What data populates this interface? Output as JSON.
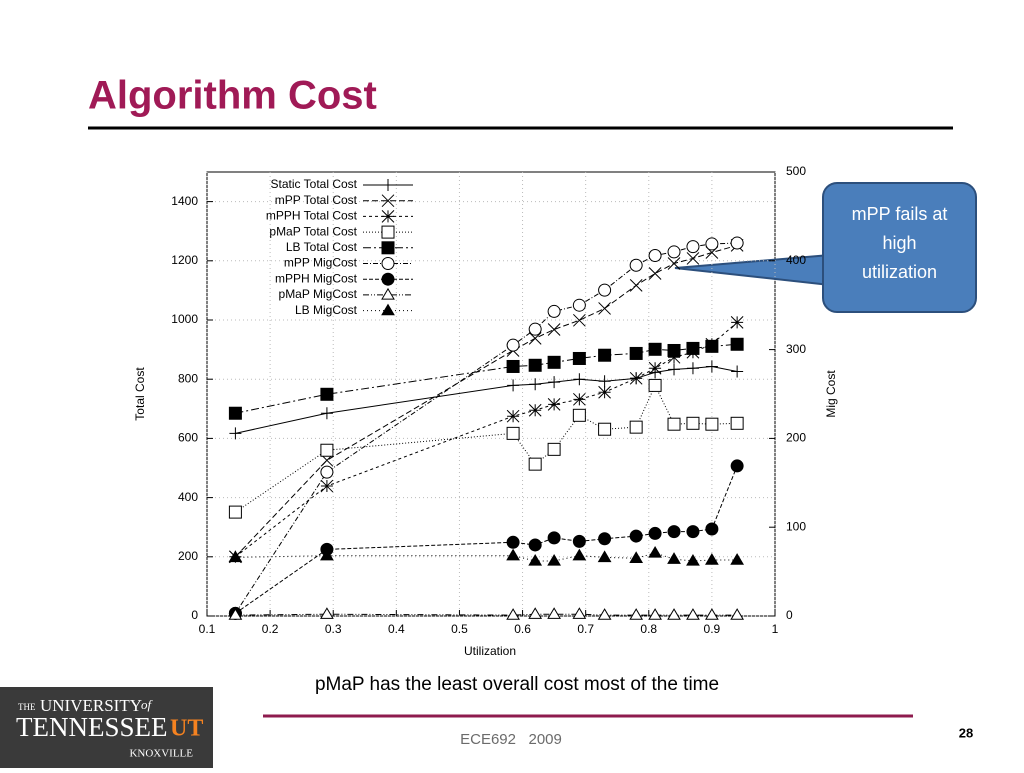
{
  "slide": {
    "title": "Algorithm Cost",
    "callout": "mPP fails at high utilization",
    "caption": "pMaP has the least overall cost most of the time",
    "footer": "ECE692   2009",
    "page_number": "28",
    "logo": {
      "line1_prefix": "THE",
      "line1": "UNIVERSITY",
      "line1_suffix": "of",
      "line2": "TENNESSEE",
      "mark": "UT",
      "line3": "KNOXVILLE"
    }
  },
  "chart_data": {
    "type": "line",
    "xlabel": "Utilization",
    "ylabel": "Total Cost",
    "y2label": "Mig Cost",
    "x": [
      0.145,
      0.29,
      0.585,
      0.62,
      0.65,
      0.69,
      0.73,
      0.78,
      0.81,
      0.84,
      0.87,
      0.9,
      0.94
    ],
    "xlim": [
      0.1,
      1
    ],
    "xticks": [
      0.1,
      0.2,
      0.3,
      0.4,
      0.5,
      0.6,
      0.7,
      0.8,
      0.9,
      1
    ],
    "ylim": [
      0,
      1500
    ],
    "yticks": [
      0,
      200,
      400,
      600,
      800,
      1000,
      1200,
      1400
    ],
    "y2lim": [
      0,
      500
    ],
    "y2ticks": [
      0,
      100,
      200,
      300,
      400,
      500
    ],
    "grid": true,
    "legend": "upper left",
    "series": [
      {
        "name": "Static Total Cost",
        "color": "#000000",
        "marker": "plus",
        "dash": "none",
        "values": [
          617,
          685,
          779,
          783,
          790,
          800,
          793,
          803,
          823,
          833,
          837,
          843,
          826
        ]
      },
      {
        "name": "mPP Total Cost",
        "color": "#000000",
        "marker": "x",
        "dash": "6,3",
        "values": [
          200,
          526,
          897,
          938,
          968,
          999,
          1039,
          1117,
          1157,
          1191,
          1208,
          1228,
          1252
        ]
      },
      {
        "name": "mPPH Total Cost",
        "color": "#000000",
        "marker": "star",
        "dash": "3,3",
        "values": [
          200,
          439,
          675,
          695,
          715,
          732,
          756,
          803,
          837,
          874,
          891,
          918,
          992
        ]
      },
      {
        "name": "pMaP Total Cost",
        "color": "#000000",
        "marker": "square",
        "dash": "1,2",
        "values": [
          351,
          560,
          617,
          513,
          563,
          678,
          631,
          638,
          779,
          648,
          651,
          648,
          651
        ]
      },
      {
        "name": "LB Total Cost",
        "color": "#000000",
        "marker": "filled-square",
        "dash": "8,3,2,3",
        "values": [
          685,
          749,
          843,
          847,
          857,
          870,
          881,
          887,
          901,
          897,
          904,
          911,
          918
        ]
      },
      {
        "name": "mPP MigCost",
        "color": "#000000",
        "marker": "circle",
        "dash": "5,2,1,2",
        "axis": "y2",
        "values": [
          3,
          162,
          305,
          323,
          343,
          350,
          367,
          395,
          406,
          410,
          416,
          419,
          420
        ]
      },
      {
        "name": "mPPH MigCost",
        "color": "#000000",
        "marker": "filled-circle",
        "dash": "4,2",
        "axis": "y2",
        "values": [
          3,
          75,
          83,
          80,
          88,
          84,
          87,
          90,
          93,
          95,
          95,
          98,
          169
        ]
      },
      {
        "name": "pMaP MigCost",
        "color": "#000000",
        "marker": "triangle",
        "dash": "6,2,1,2,1,2",
        "axis": "y2",
        "values": [
          1,
          2,
          1,
          2,
          2,
          2,
          1,
          1,
          1,
          1,
          1,
          1,
          1
        ]
      },
      {
        "name": "LB MigCost",
        "color": "#000000",
        "marker": "filled-triangle",
        "dash": "1,3",
        "axis": "y2",
        "values": [
          66,
          68,
          68,
          62,
          62,
          68,
          66,
          65,
          71,
          64,
          62,
          63,
          63
        ]
      }
    ]
  }
}
